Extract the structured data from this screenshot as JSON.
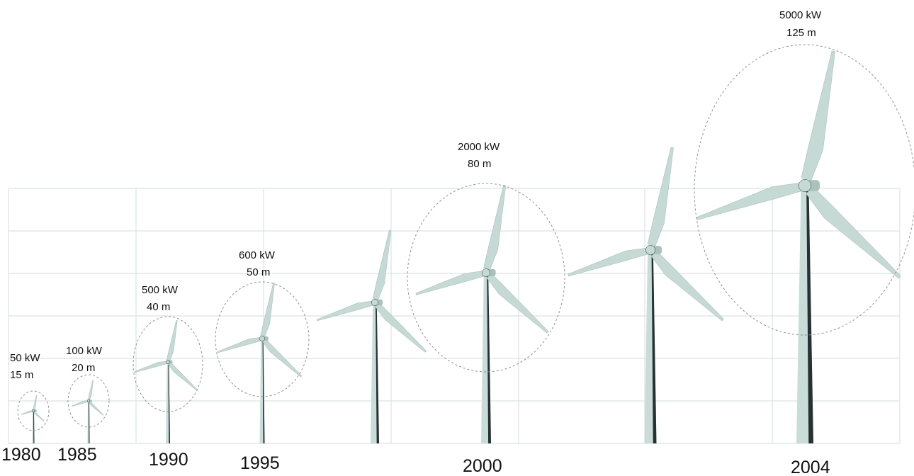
{
  "colors": {
    "blade": "#c5d9d5",
    "blade_shade": "#a9c2bd",
    "tower": "#c9dcd8",
    "tower_shadow": "#253232",
    "grid": "#d9e4e2",
    "circle": "#8f8f8f"
  },
  "turbines": [
    {
      "id": "t1980",
      "year": "1980",
      "power": "50 kW",
      "diameter": "15 m"
    },
    {
      "id": "t1985",
      "year": "1985",
      "power": "100 kW",
      "diameter": "20 m"
    },
    {
      "id": "t1990",
      "year": "1990",
      "power": "500 kW",
      "diameter": "40 m"
    },
    {
      "id": "t1995",
      "year": "1995",
      "power": "600 kW",
      "diameter": "50 m"
    },
    {
      "id": "t1998",
      "year": "",
      "power": "",
      "diameter": ""
    },
    {
      "id": "t2000",
      "year": "2000",
      "power": "2000 kW",
      "diameter": "80 m"
    },
    {
      "id": "t2002",
      "year": "",
      "power": "",
      "diameter": ""
    },
    {
      "id": "t2004",
      "year": "2004",
      "power": "5000 kW",
      "diameter": "125 m"
    }
  ]
}
